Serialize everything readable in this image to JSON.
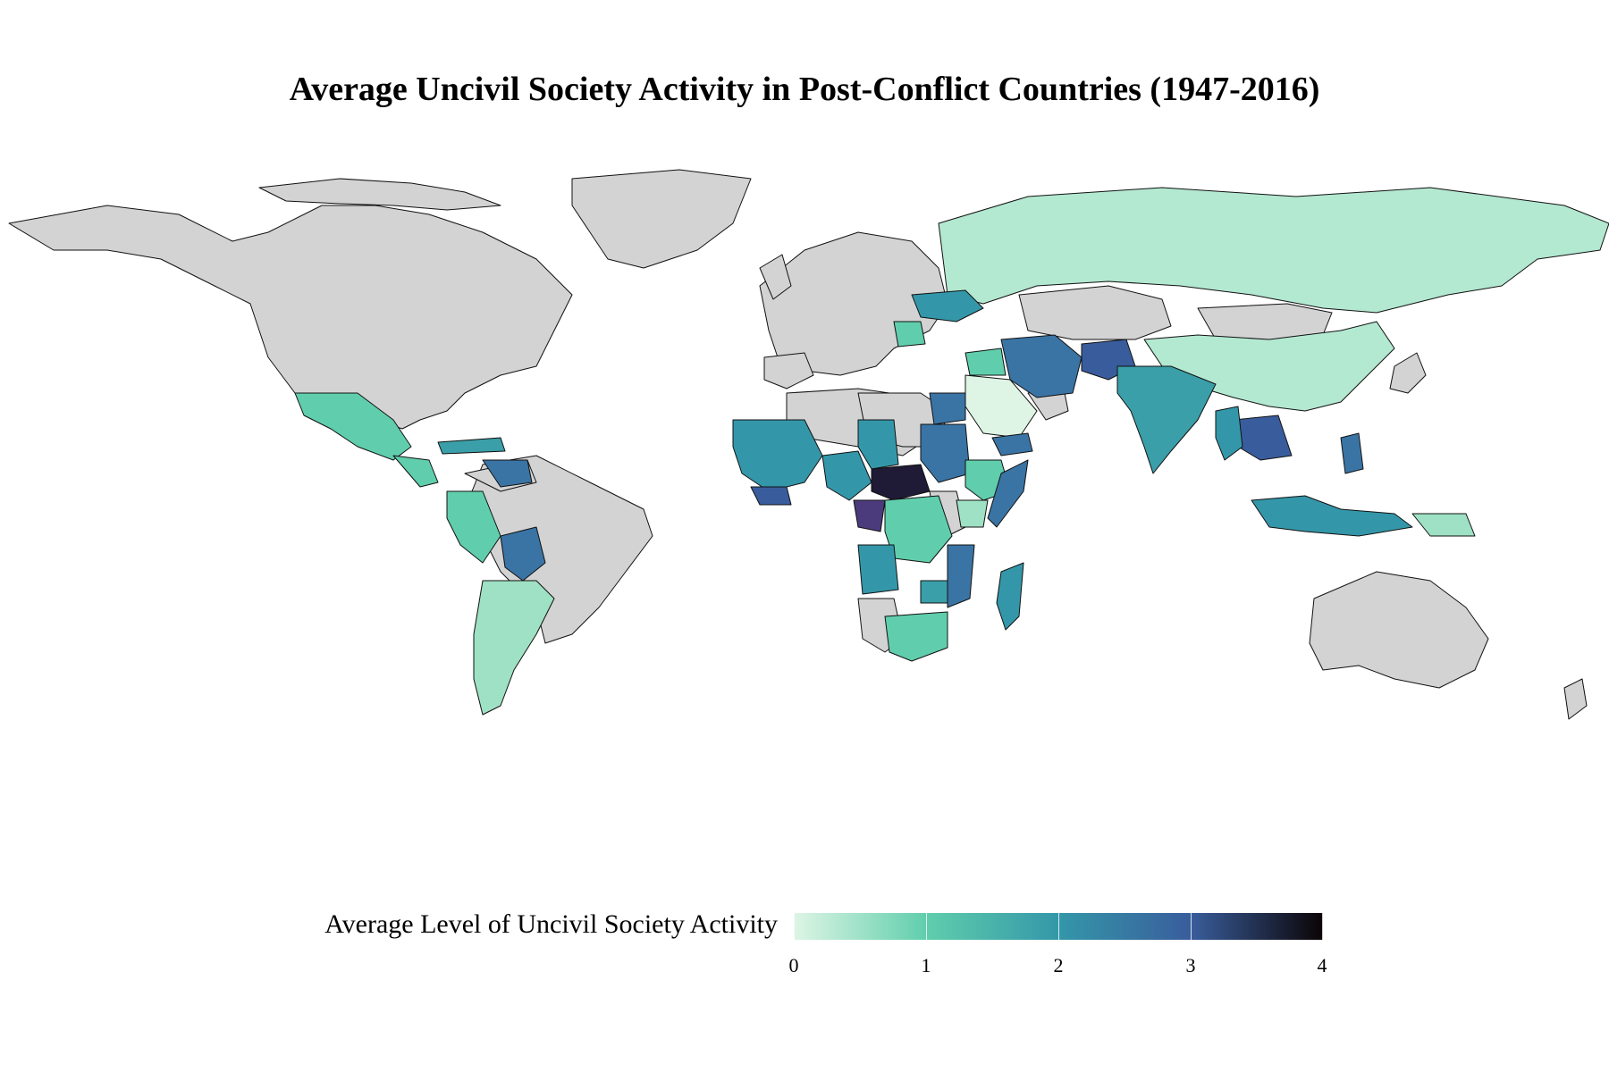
{
  "title": "Average Uncivil Society Activity in Post-Conflict Countries (1947-2016)",
  "legend": {
    "label": "Average Level of Uncivil Society Activity",
    "ticks": [
      "0",
      "1",
      "2",
      "3",
      "4"
    ],
    "colors": [
      "#def5e5",
      "#60ceac",
      "#3497a9",
      "#395d9c",
      "#382a54",
      "#0b0405"
    ]
  },
  "map": {
    "no_data_color": "#d3d3d3",
    "projection": "equirectangular",
    "scale": {
      "min": 0,
      "max": 4
    }
  }
}
